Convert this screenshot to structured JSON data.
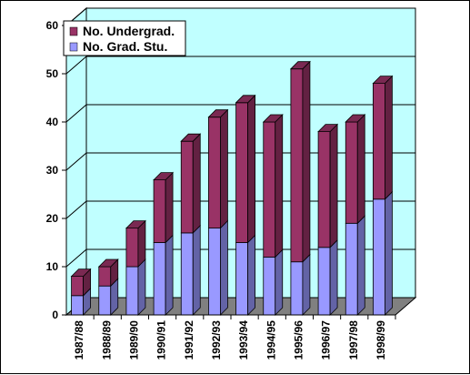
{
  "chart_data": {
    "type": "bar",
    "stacked": true,
    "three_d": true,
    "categories": [
      "1987/88",
      "1988/89",
      "1989/90",
      "1990/91",
      "1991/92",
      "1992/93",
      "1993/94",
      "1994/95",
      "1995/96",
      "1996/97",
      "1997/98",
      "1998/99"
    ],
    "series": [
      {
        "name": "No. Grad. Stu.",
        "values": [
          4,
          6,
          10,
          15,
          17,
          18,
          15,
          12,
          11,
          14,
          19,
          24
        ],
        "color": "#9999ff"
      },
      {
        "name": "No. Undergrad.",
        "values": [
          4,
          4,
          8,
          13,
          19,
          23,
          29,
          28,
          40,
          24,
          21,
          24
        ],
        "color": "#993366"
      }
    ],
    "ylim": [
      0,
      60
    ],
    "yticks": [
      0,
      10,
      20,
      30,
      40,
      50,
      60
    ],
    "grid": true,
    "legend": {
      "placement": "top-left",
      "order": [
        "No. Undergrad.",
        "No. Grad. Stu."
      ]
    },
    "colors": {
      "wall": "#c0ffff",
      "floor": "#808080",
      "gridline": "#000000"
    }
  }
}
